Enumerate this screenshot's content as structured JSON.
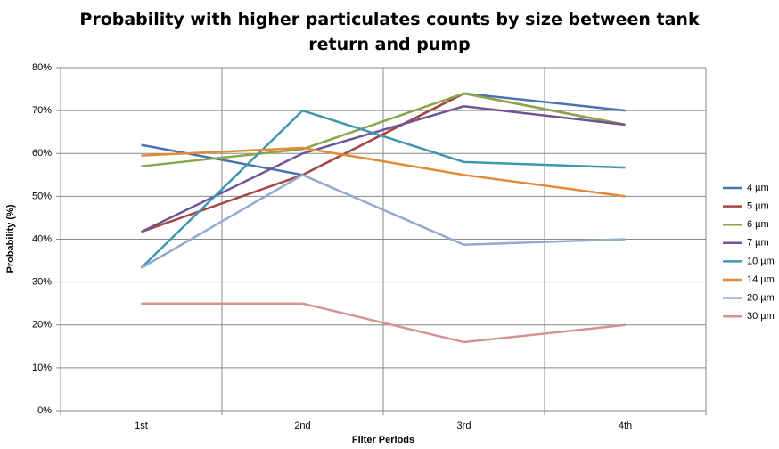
{
  "chart_data": {
    "type": "line",
    "title": "Probability with higher particulates counts by size between tank return and pump",
    "x_label": "Filter Periods",
    "y_label": "Probability (%)",
    "categories": [
      "1st",
      "2nd",
      "3rd",
      "4th"
    ],
    "series": [
      {
        "name": "4 µm",
        "color": "#4a72b0",
        "values": [
          62,
          55,
          74,
          70
        ]
      },
      {
        "name": "5 µm",
        "color": "#a84642",
        "values": [
          41.7,
          55,
          74,
          66.7
        ]
      },
      {
        "name": "6 µm",
        "color": "#8aa64a",
        "values": [
          57,
          61,
          74,
          66.7
        ]
      },
      {
        "name": "7 µm",
        "color": "#6f5598",
        "values": [
          41.7,
          60,
          71,
          66.7
        ]
      },
      {
        "name": "10 µm",
        "color": "#3e97ae",
        "values": [
          33.3,
          70,
          58,
          56.7
        ]
      },
      {
        "name": "14 µm",
        "color": "#e38a3a",
        "values": [
          59.5,
          61.3,
          55,
          50
        ]
      },
      {
        "name": "20 µm",
        "color": "#94a9d0",
        "values": [
          33.3,
          55,
          38.7,
          40
        ]
      },
      {
        "name": "30 µm",
        "color": "#d49393",
        "values": [
          25,
          25,
          16,
          20
        ]
      }
    ],
    "ylim": [
      0,
      80
    ],
    "yticks": [
      {
        "value": 0,
        "label": "0%"
      },
      {
        "value": 10,
        "label": "10%"
      },
      {
        "value": 20,
        "label": "20%"
      },
      {
        "value": 30,
        "label": "30%"
      },
      {
        "value": 40,
        "label": "40%"
      },
      {
        "value": 50,
        "label": "50%"
      },
      {
        "value": 60,
        "label": "60%"
      },
      {
        "value": 70,
        "label": "70%"
      },
      {
        "value": 80,
        "label": "80%"
      }
    ],
    "grid": true,
    "legend": "right"
  }
}
